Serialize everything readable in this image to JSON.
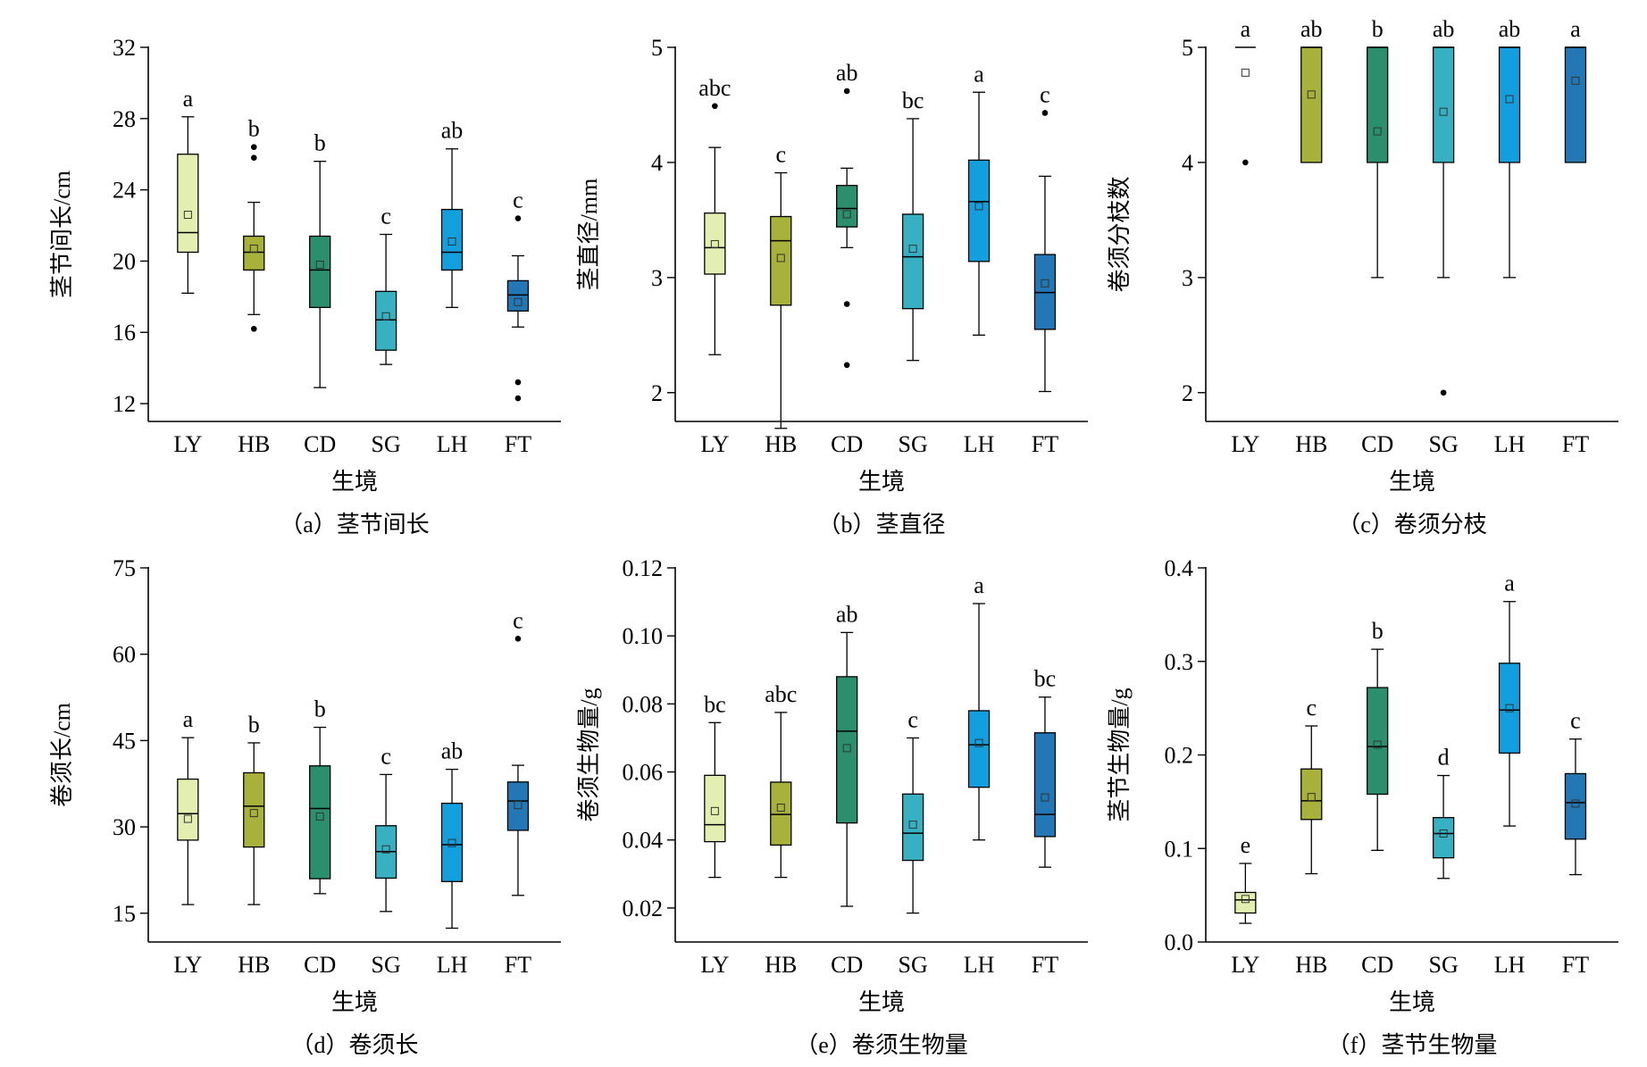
{
  "figure": {
    "x_axis_title": "生境",
    "categories": [
      "LY",
      "HB",
      "CD",
      "SG",
      "LH",
      "FT"
    ],
    "colors": {
      "LY": "#e2efb0",
      "HB": "#a8b13a",
      "CD": "#2b8f6e",
      "SG": "#37b1c2",
      "LH": "#139fdd",
      "FT": "#2277b4"
    }
  },
  "chart_data": [
    {
      "id": "a",
      "type": "box",
      "caption": "（a）茎节间长",
      "ylabel": "茎节间长/cm",
      "xlabel": "生境",
      "ylim": [
        11,
        32
      ],
      "yticks": [
        12,
        16,
        20,
        24,
        28,
        32
      ],
      "tick_format": "0",
      "categories": [
        "LY",
        "HB",
        "CD",
        "SG",
        "LH",
        "FT"
      ],
      "boxes": [
        {
          "name": "LY",
          "whisker_low": 18.2,
          "q1": 20.5,
          "median": 21.6,
          "q3": 26.0,
          "whisker_high": 28.1,
          "mean": 22.6,
          "outliers": [],
          "letter": "a"
        },
        {
          "name": "HB",
          "whisker_low": 17.0,
          "q1": 19.5,
          "median": 20.5,
          "q3": 21.4,
          "whisker_high": 23.3,
          "mean": 20.7,
          "outliers": [
            16.2,
            25.8,
            26.4
          ],
          "letter": "b"
        },
        {
          "name": "CD",
          "whisker_low": 12.9,
          "q1": 17.4,
          "median": 19.5,
          "q3": 21.4,
          "whisker_high": 25.6,
          "mean": 19.8,
          "outliers": [],
          "letter": "b"
        },
        {
          "name": "SG",
          "whisker_low": 14.2,
          "q1": 15.0,
          "median": 16.7,
          "q3": 18.3,
          "whisker_high": 21.5,
          "mean": 16.9,
          "outliers": [],
          "letter": "c"
        },
        {
          "name": "LH",
          "whisker_low": 17.4,
          "q1": 19.5,
          "median": 20.5,
          "q3": 22.9,
          "whisker_high": 26.3,
          "mean": 21.1,
          "outliers": [],
          "letter": "ab"
        },
        {
          "name": "FT",
          "whisker_low": 16.3,
          "q1": 17.2,
          "median": 18.1,
          "q3": 18.9,
          "whisker_high": 20.3,
          "mean": 17.7,
          "outliers": [
            12.3,
            13.2,
            22.4
          ],
          "letter": "c"
        }
      ]
    },
    {
      "id": "b",
      "type": "box",
      "caption": "（b）茎直径",
      "ylabel": "茎直径/mm",
      "xlabel": "生境",
      "ylim": [
        1.75,
        5
      ],
      "yticks": [
        2,
        3,
        4,
        5
      ],
      "tick_format": "0",
      "categories": [
        "LY",
        "HB",
        "CD",
        "SG",
        "LH",
        "FT"
      ],
      "boxes": [
        {
          "name": "LY",
          "whisker_low": 2.33,
          "q1": 3.03,
          "median": 3.26,
          "q3": 3.56,
          "whisker_high": 4.13,
          "mean": 3.29,
          "outliers": [
            4.49
          ],
          "letter": "abc"
        },
        {
          "name": "HB",
          "whisker_low": 1.69,
          "q1": 2.76,
          "median": 3.32,
          "q3": 3.53,
          "whisker_high": 3.91,
          "mean": 3.17,
          "outliers": [],
          "letter": "c"
        },
        {
          "name": "CD",
          "whisker_low": 3.26,
          "q1": 3.44,
          "median": 3.6,
          "q3": 3.8,
          "whisker_high": 3.95,
          "mean": 3.55,
          "outliers": [
            2.24,
            2.77,
            4.62
          ],
          "letter": "ab"
        },
        {
          "name": "SG",
          "whisker_low": 2.28,
          "q1": 2.73,
          "median": 3.18,
          "q3": 3.55,
          "whisker_high": 4.38,
          "mean": 3.25,
          "outliers": [],
          "letter": "bc"
        },
        {
          "name": "LH",
          "whisker_low": 2.5,
          "q1": 3.14,
          "median": 3.66,
          "q3": 4.02,
          "whisker_high": 4.61,
          "mean": 3.62,
          "outliers": [],
          "letter": "a"
        },
        {
          "name": "FT",
          "whisker_low": 2.01,
          "q1": 2.55,
          "median": 2.87,
          "q3": 3.2,
          "whisker_high": 3.88,
          "mean": 2.95,
          "outliers": [
            4.43
          ],
          "letter": "c"
        }
      ]
    },
    {
      "id": "c",
      "type": "box",
      "caption": "（c）卷须分枝",
      "ylabel": "卷须分枝数",
      "xlabel": "生境",
      "ylim": [
        1.75,
        5
      ],
      "yticks": [
        2,
        3,
        4,
        5
      ],
      "tick_format": "0",
      "categories": [
        "LY",
        "HB",
        "CD",
        "SG",
        "LH",
        "FT"
      ],
      "boxes": [
        {
          "name": "LY",
          "whisker_low": 5,
          "q1": 5,
          "median": 5,
          "q3": 5,
          "whisker_high": 5,
          "mean": 4.78,
          "outliers": [
            4
          ],
          "letter": "a"
        },
        {
          "name": "HB",
          "whisker_low": 4,
          "q1": 4,
          "median": 5,
          "q3": 5,
          "whisker_high": 5,
          "mean": 4.59,
          "outliers": [],
          "letter": "ab"
        },
        {
          "name": "CD",
          "whisker_low": 3,
          "q1": 4,
          "median": 5,
          "q3": 5,
          "whisker_high": 5,
          "mean": 4.27,
          "outliers": [],
          "letter": "b"
        },
        {
          "name": "SG",
          "whisker_low": 3,
          "q1": 4,
          "median": 5,
          "q3": 5,
          "whisker_high": 5,
          "mean": 4.44,
          "outliers": [
            2
          ],
          "letter": "ab"
        },
        {
          "name": "LH",
          "whisker_low": 3,
          "q1": 4,
          "median": 5,
          "q3": 5,
          "whisker_high": 5,
          "mean": 4.55,
          "outliers": [],
          "letter": "ab"
        },
        {
          "name": "FT",
          "whisker_low": 4,
          "q1": 4,
          "median": 5,
          "q3": 5,
          "whisker_high": 5,
          "mean": 4.71,
          "outliers": [],
          "letter": "a"
        }
      ]
    },
    {
      "id": "d",
      "type": "box",
      "caption": "（d）卷须长",
      "ylabel": "卷须长/cm",
      "xlabel": "生境",
      "ylim": [
        10,
        75
      ],
      "yticks": [
        15,
        30,
        45,
        60,
        75
      ],
      "tick_format": "0",
      "categories": [
        "LY",
        "HB",
        "CD",
        "SG",
        "LH",
        "FT"
      ],
      "boxes": [
        {
          "name": "LY",
          "whisker_low": 16.5,
          "q1": 27.7,
          "median": 32.3,
          "q3": 38.3,
          "whisker_high": 45.5,
          "mean": 31.4,
          "outliers": [],
          "letter": "a"
        },
        {
          "name": "HB",
          "whisker_low": 16.5,
          "q1": 26.5,
          "median": 33.6,
          "q3": 39.4,
          "whisker_high": 44.6,
          "mean": 32.4,
          "outliers": [],
          "letter": "b"
        },
        {
          "name": "CD",
          "whisker_low": 18.4,
          "q1": 21.0,
          "median": 33.2,
          "q3": 40.6,
          "whisker_high": 47.3,
          "mean": 31.8,
          "outliers": [],
          "letter": "b"
        },
        {
          "name": "SG",
          "whisker_low": 15.3,
          "q1": 21.1,
          "median": 25.7,
          "q3": 30.2,
          "whisker_high": 39.1,
          "mean": 26.1,
          "outliers": [],
          "letter": "c"
        },
        {
          "name": "LH",
          "whisker_low": 12.4,
          "q1": 20.5,
          "median": 26.9,
          "q3": 34.1,
          "whisker_high": 40.0,
          "mean": 27.2,
          "outliers": [],
          "letter": "ab"
        },
        {
          "name": "FT",
          "whisker_low": 18.1,
          "q1": 29.4,
          "median": 34.5,
          "q3": 37.8,
          "whisker_high": 40.7,
          "mean": 33.8,
          "outliers": [
            62.7
          ],
          "letter": "c"
        }
      ]
    },
    {
      "id": "e",
      "type": "box",
      "caption": "（e）卷须生物量",
      "ylabel": "卷须生物量/g",
      "xlabel": "生境",
      "ylim": [
        0.01,
        0.12
      ],
      "yticks": [
        0.02,
        0.04,
        0.06,
        0.08,
        0.1,
        0.12
      ],
      "tick_format": "2",
      "categories": [
        "LY",
        "HB",
        "CD",
        "SG",
        "LH",
        "FT"
      ],
      "boxes": [
        {
          "name": "LY",
          "whisker_low": 0.029,
          "q1": 0.0395,
          "median": 0.0445,
          "q3": 0.059,
          "whisker_high": 0.0745,
          "mean": 0.0485,
          "outliers": [],
          "letter": "bc"
        },
        {
          "name": "HB",
          "whisker_low": 0.029,
          "q1": 0.0385,
          "median": 0.0475,
          "q3": 0.057,
          "whisker_high": 0.0775,
          "mean": 0.0495,
          "outliers": [],
          "letter": "abc"
        },
        {
          "name": "CD",
          "whisker_low": 0.0205,
          "q1": 0.045,
          "median": 0.072,
          "q3": 0.088,
          "whisker_high": 0.101,
          "mean": 0.067,
          "outliers": [],
          "letter": "ab"
        },
        {
          "name": "SG",
          "whisker_low": 0.0185,
          "q1": 0.034,
          "median": 0.042,
          "q3": 0.0535,
          "whisker_high": 0.07,
          "mean": 0.0445,
          "outliers": [],
          "letter": "c"
        },
        {
          "name": "LH",
          "whisker_low": 0.04,
          "q1": 0.0555,
          "median": 0.068,
          "q3": 0.078,
          "whisker_high": 0.1095,
          "mean": 0.0685,
          "outliers": [],
          "letter": "a"
        },
        {
          "name": "FT",
          "whisker_low": 0.032,
          "q1": 0.041,
          "median": 0.0475,
          "q3": 0.0715,
          "whisker_high": 0.082,
          "mean": 0.0525,
          "outliers": [],
          "letter": "bc"
        }
      ]
    },
    {
      "id": "f",
      "type": "box",
      "caption": "（f）茎节生物量",
      "ylabel": "茎节生物量/g",
      "xlabel": "生境",
      "ylim": [
        0,
        0.4
      ],
      "yticks": [
        0.0,
        0.1,
        0.2,
        0.3,
        0.4
      ],
      "tick_format": "1",
      "categories": [
        "LY",
        "HB",
        "CD",
        "SG",
        "LH",
        "FT"
      ],
      "boxes": [
        {
          "name": "LY",
          "whisker_low": 0.02,
          "q1": 0.031,
          "median": 0.045,
          "q3": 0.053,
          "whisker_high": 0.084,
          "mean": 0.046,
          "outliers": [],
          "letter": "e"
        },
        {
          "name": "HB",
          "whisker_low": 0.073,
          "q1": 0.131,
          "median": 0.151,
          "q3": 0.185,
          "whisker_high": 0.231,
          "mean": 0.155,
          "outliers": [],
          "letter": "c"
        },
        {
          "name": "CD",
          "whisker_low": 0.098,
          "q1": 0.158,
          "median": 0.209,
          "q3": 0.272,
          "whisker_high": 0.313,
          "mean": 0.211,
          "outliers": [],
          "letter": "b"
        },
        {
          "name": "SG",
          "whisker_low": 0.068,
          "q1": 0.09,
          "median": 0.116,
          "q3": 0.133,
          "whisker_high": 0.178,
          "mean": 0.116,
          "outliers": [],
          "letter": "d"
        },
        {
          "name": "LH",
          "whisker_low": 0.124,
          "q1": 0.202,
          "median": 0.248,
          "q3": 0.298,
          "whisker_high": 0.364,
          "mean": 0.25,
          "outliers": [],
          "letter": "a"
        },
        {
          "name": "FT",
          "whisker_low": 0.072,
          "q1": 0.11,
          "median": 0.149,
          "q3": 0.18,
          "whisker_high": 0.217,
          "mean": 0.148,
          "outliers": [],
          "letter": "c"
        }
      ]
    }
  ]
}
